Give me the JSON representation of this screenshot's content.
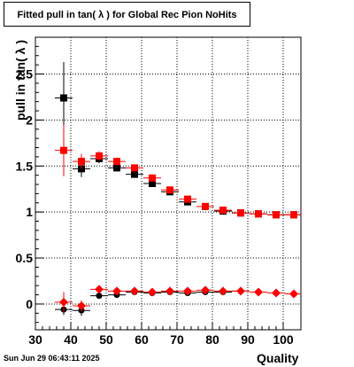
{
  "canvas": {
    "title": "Fitted pull in tan( λ ) for Global Rec Pion NoHits",
    "timestamp": "Sun Jun 29 06:43:11 2025"
  },
  "chart_data": {
    "type": "scatter",
    "title": "Fitted pull in tan( λ ) for Global Rec Pion NoHits",
    "xlabel": "Quality",
    "ylabel": "pull in tan( λ )",
    "xlim": [
      30,
      105
    ],
    "ylim": [
      -0.28,
      2.9
    ],
    "xticks": [
      30,
      40,
      50,
      60,
      70,
      80,
      90,
      100
    ],
    "yticks": [
      0,
      0.5,
      1,
      1.5,
      2,
      2.5
    ],
    "ytick_labels": [
      "0",
      "0.5",
      "1",
      "1.5",
      "2",
      "2.5"
    ],
    "grid": true,
    "series": [
      {
        "marker": "square",
        "color": "#000000",
        "x": [
          38,
          43,
          48,
          53,
          58,
          63,
          68,
          73,
          78,
          83,
          88,
          93,
          98,
          103
        ],
        "y": [
          2.24,
          1.47,
          1.58,
          1.48,
          1.41,
          1.31,
          1.22,
          1.11,
          1.06,
          1.01,
          0.99,
          0.98,
          0.97,
          0.97
        ],
        "yerr": [
          0.39,
          0.09,
          0.05,
          0.04,
          0.03,
          0.03,
          0.03,
          0.02,
          0.02,
          0.02,
          0.02,
          0.02,
          0.02,
          0.02
        ]
      },
      {
        "marker": "square",
        "color": "#ff0000",
        "x": [
          38,
          43,
          48,
          53,
          58,
          63,
          68,
          73,
          78,
          83,
          88,
          93,
          98,
          103
        ],
        "y": [
          1.67,
          1.55,
          1.61,
          1.55,
          1.48,
          1.37,
          1.24,
          1.14,
          1.06,
          1.02,
          0.99,
          0.98,
          0.97,
          0.97
        ],
        "yerr": [
          0.28,
          0.08,
          0.05,
          0.04,
          0.03,
          0.03,
          0.03,
          0.02,
          0.02,
          0.02,
          0.02,
          0.02,
          0.02,
          0.02
        ]
      },
      {
        "marker": "circle",
        "color": "#000000",
        "x": [
          38,
          43,
          48,
          53,
          58,
          63,
          68,
          73,
          78,
          83,
          88,
          93,
          98,
          103
        ],
        "y": [
          -0.06,
          -0.07,
          0.09,
          0.1,
          0.13,
          0.12,
          0.13,
          0.12,
          0.13,
          0.13,
          0.14,
          0.13,
          0.12,
          0.11
        ],
        "yerr": [
          0.06,
          0.06,
          0.03,
          0.02,
          0.02,
          0.02,
          0.02,
          0.01,
          0.01,
          0.01,
          0.01,
          0.01,
          0.01,
          0.01
        ]
      },
      {
        "marker": "diamond",
        "color": "#ff0000",
        "x": [
          38,
          43,
          48,
          53,
          58,
          63,
          68,
          73,
          78,
          83,
          88,
          93,
          98,
          103
        ],
        "y": [
          0.02,
          -0.02,
          0.16,
          0.14,
          0.14,
          0.13,
          0.14,
          0.14,
          0.15,
          0.14,
          0.14,
          0.13,
          0.12,
          0.11
        ],
        "yerr": [
          0.11,
          0.06,
          0.03,
          0.02,
          0.02,
          0.02,
          0.02,
          0.01,
          0.01,
          0.01,
          0.01,
          0.01,
          0.01,
          0.01
        ]
      }
    ]
  }
}
